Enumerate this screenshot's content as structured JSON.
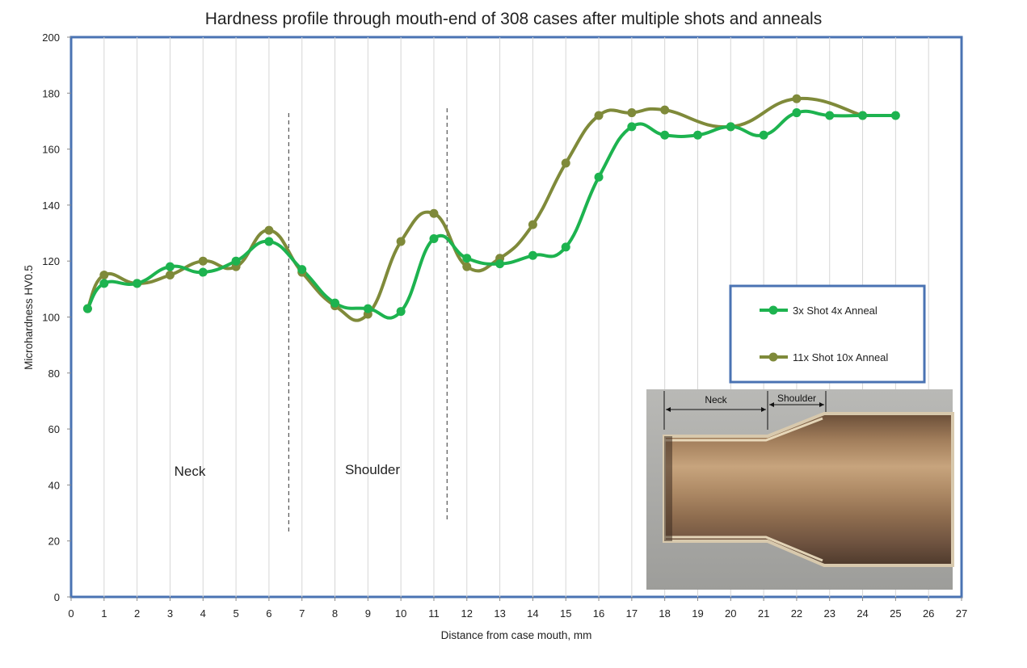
{
  "chart_data": {
    "type": "line",
    "title": "Hardness profile through mouth-end of 308 cases after multiple shots and anneals",
    "xlabel": "Distance from case mouth, mm",
    "ylabel": "Microhardness HV0.5",
    "xlim": [
      0,
      27
    ],
    "ylim": [
      0,
      200
    ],
    "xticks": [
      0,
      1,
      2,
      3,
      4,
      5,
      6,
      7,
      8,
      9,
      10,
      11,
      12,
      13,
      14,
      15,
      16,
      17,
      18,
      19,
      20,
      21,
      22,
      23,
      24,
      25,
      26,
      27
    ],
    "yticks": [
      0,
      20,
      40,
      60,
      80,
      100,
      120,
      140,
      160,
      180,
      200
    ],
    "grid": "vertical",
    "legend_position": "right",
    "series": [
      {
        "name": "3x Shot 4x Anneal",
        "color": "#1db34f",
        "x": [
          0.5,
          1,
          2,
          3,
          4,
          5,
          6,
          7,
          8,
          9,
          10,
          11,
          12,
          13,
          14,
          15,
          16,
          17,
          18,
          19,
          20,
          21,
          22,
          23,
          24,
          25
        ],
        "y": [
          103,
          112,
          112,
          118,
          116,
          120,
          127,
          117,
          105,
          103,
          102,
          128,
          121,
          119,
          122,
          125,
          150,
          168,
          165,
          165,
          168,
          165,
          173,
          172,
          172,
          172
        ]
      },
      {
        "name": "11x Shot 10x Anneal",
        "color": "#7f8a3a",
        "x": [
          0.5,
          1,
          2,
          3,
          4,
          5,
          6,
          7,
          8,
          9,
          10,
          11,
          12,
          13,
          14,
          15,
          16,
          17,
          18,
          20,
          22,
          24
        ],
        "y": [
          103,
          115,
          112,
          115,
          120,
          118,
          131,
          116,
          104,
          101,
          127,
          137,
          118,
          121,
          133,
          155,
          172,
          173,
          174,
          168,
          178,
          172
        ]
      }
    ],
    "annotations": {
      "neck": "Neck",
      "shoulder": "Shoulder",
      "boundaries_x": [
        6.6,
        11.4
      ]
    },
    "inset_photo": {
      "neck_label": "Neck",
      "shoulder_label": "Shoulder"
    }
  }
}
